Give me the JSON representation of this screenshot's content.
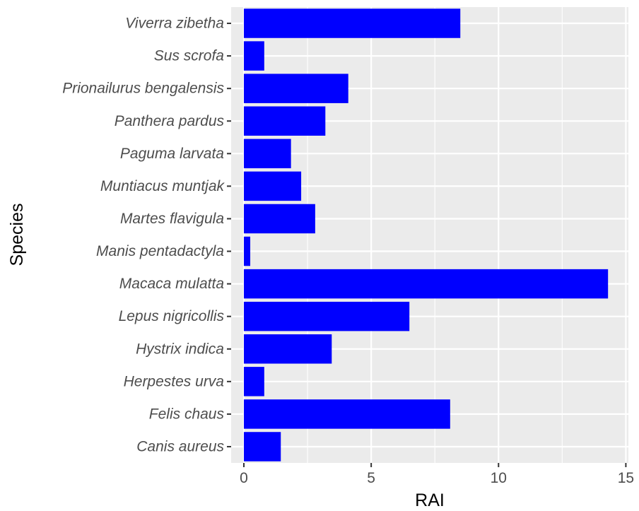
{
  "chart_data": {
    "type": "bar",
    "orientation": "horizontal",
    "categories": [
      "Viverra zibetha",
      "Sus scrofa",
      "Prionailurus bengalensis",
      "Panthera pardus",
      "Paguma larvata",
      "Muntiacus muntjak",
      "Martes flavigula",
      "Manis pentadactyla",
      "Macaca mulatta",
      "Lepus nigricollis",
      "Hystrix indica",
      "Herpestes urva",
      "Felis chaus",
      "Canis aureus"
    ],
    "values": [
      8.5,
      0.8,
      4.1,
      3.2,
      1.85,
      2.25,
      2.8,
      0.25,
      14.3,
      6.5,
      3.45,
      0.8,
      8.1,
      1.45
    ],
    "xlabel": "RAI",
    "ylabel": "Species",
    "xlim": [
      -0.5,
      15.1
    ],
    "xticks": [
      0,
      5,
      10,
      15
    ],
    "grid": true,
    "colors": {
      "bar": "#0000ff",
      "panel": "#ebebeb",
      "grid": "#ffffff"
    }
  }
}
